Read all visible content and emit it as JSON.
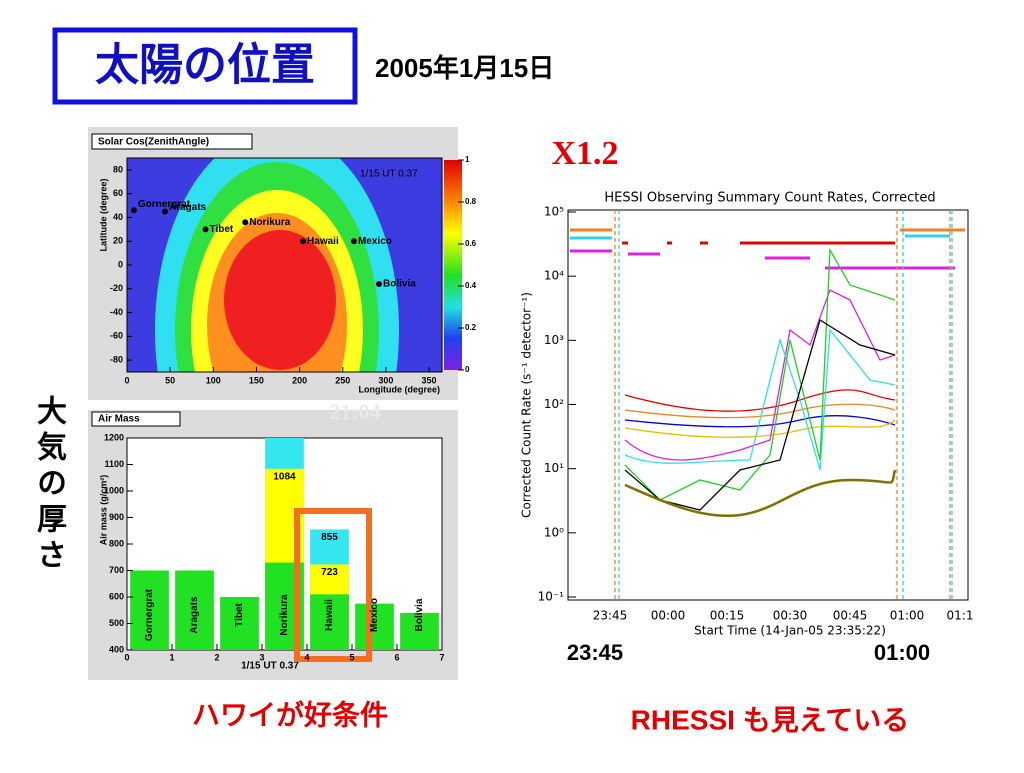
{
  "header": {
    "title": "太陽の位置",
    "date": "2005年1月15日"
  },
  "side_label": "大気の厚さ",
  "flare_class": "X1.2",
  "faint_time": "21:04",
  "zenith_map": {
    "title": "Solar Cos(ZenithAngle)",
    "annotation": "1/15 UT 0.37",
    "x_label": "Longitude (degree)",
    "y_label": "Latitude (degree)",
    "xlim": [
      0,
      365
    ],
    "ylim": [
      -90,
      90
    ],
    "xticks": [
      0,
      50,
      100,
      150,
      200,
      250,
      300,
      350
    ],
    "yticks": [
      80,
      60,
      40,
      20,
      0,
      -20,
      -40,
      -60,
      -80
    ],
    "colorbar_ticks": [
      1,
      0.8,
      0.6,
      0.4,
      0.2,
      0
    ],
    "stations": [
      {
        "name": "Gornergrat",
        "lon": 8,
        "lat": 46
      },
      {
        "name": "Aragats",
        "lon": 44,
        "lat": 45
      },
      {
        "name": "Tibet",
        "lon": 91,
        "lat": 30
      },
      {
        "name": "Norikura",
        "lon": 137,
        "lat": 36
      },
      {
        "name": "Hawaii",
        "lon": 204,
        "lat": 20
      },
      {
        "name": "Mexico",
        "lon": 263,
        "lat": 20
      },
      {
        "name": "Bolivia",
        "lon": 292,
        "lat": -16
      }
    ]
  },
  "air_mass": {
    "type": "bar",
    "title": "Air Mass",
    "y_label": "Air mass (g/cm²)",
    "x_label": "1/15  UT  0.37",
    "categories": [
      "Gornergrat",
      "Aragats",
      "Tibet",
      "Norikura",
      "Hawaii",
      "Mexico",
      "Bolivia"
    ],
    "xlim": [
      0,
      7
    ],
    "xticks": [
      0,
      1,
      2,
      3,
      4,
      5,
      6,
      7
    ],
    "ylim": [
      400,
      1200
    ],
    "yticks": [
      400,
      500,
      600,
      700,
      800,
      900,
      1000,
      1100,
      1200
    ],
    "series": [
      {
        "name": "cyan",
        "color": "#33e6f0",
        "data_labels": true,
        "values": [
          null,
          null,
          null,
          1250,
          855,
          null,
          null
        ]
      },
      {
        "name": "yellow",
        "color": "#ffff00",
        "data_labels": true,
        "values": [
          null,
          null,
          null,
          1084,
          723,
          null,
          null
        ]
      },
      {
        "name": "green",
        "color": "#22e022",
        "data_labels": false,
        "values": [
          700,
          700,
          600,
          730,
          610,
          575,
          540
        ]
      }
    ]
  },
  "rhessi": {
    "title": "HESSI Observing Summary Count Rates, Corrected",
    "y_label": "Corrected Count Rate (s⁻¹ detector⁻¹)",
    "x_label": "Start Time (14-Jan-05 23:35:22)",
    "ylim": [
      0.1,
      100000
    ],
    "yticks": [
      {
        "value": 0.1,
        "label": "10⁻¹"
      },
      {
        "value": 1,
        "label": "10⁰"
      },
      {
        "value": 10,
        "label": "10¹"
      },
      {
        "value": 100,
        "label": "10²"
      },
      {
        "value": 1000,
        "label": "10³"
      },
      {
        "value": 10000,
        "label": "10⁴"
      },
      {
        "value": 100000,
        "label": "10⁵"
      }
    ],
    "xticks": [
      "23:45",
      "00:00",
      "00:15",
      "00:30",
      "00:45",
      "01:00",
      "01:1"
    ],
    "markers": [
      "23:45",
      "01:00"
    ]
  },
  "captions": {
    "left": "ハワイが好条件",
    "right": "RHESSI も見えている"
  }
}
